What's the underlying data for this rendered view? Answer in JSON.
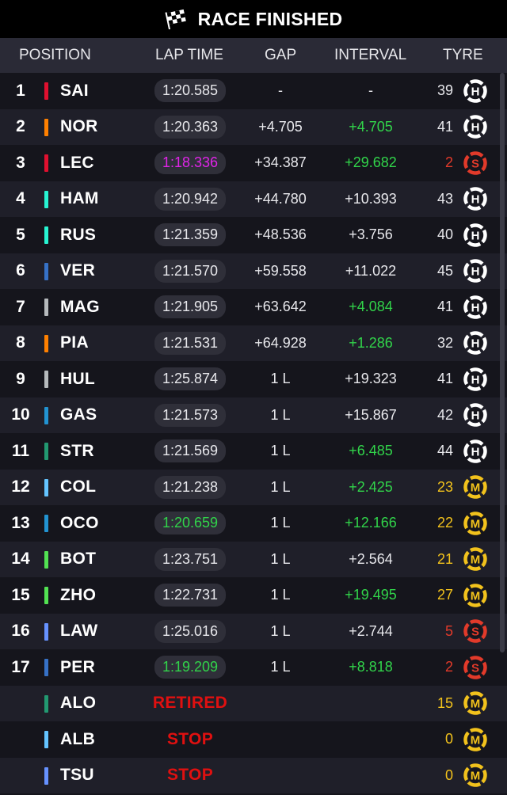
{
  "title": "RACE FINISHED",
  "colors": {
    "purple": "#e024e8",
    "green": "#31d44a",
    "yellow": "#f2c21c",
    "red": "#e23a2a"
  },
  "columns": {
    "position": "POSITION",
    "lap_time": "LAP TIME",
    "gap": "GAP",
    "interval": "INTERVAL",
    "tyre": "TYRE"
  },
  "rows": [
    {
      "pos": "1",
      "team_color": "#e0102f",
      "driver": "SAI",
      "lap": "1:20.585",
      "lap_style": "",
      "gap": "-",
      "interval": "-",
      "interval_green": false,
      "laps": "39",
      "laps_color": "",
      "tyre": "H",
      "tyre_color": "#ffffff"
    },
    {
      "pos": "2",
      "team_color": "#ff8000",
      "driver": "NOR",
      "lap": "1:20.363",
      "lap_style": "",
      "gap": "+4.705",
      "interval": "+4.705",
      "interval_green": true,
      "laps": "41",
      "laps_color": "",
      "tyre": "H",
      "tyre_color": "#ffffff"
    },
    {
      "pos": "3",
      "team_color": "#e0102f",
      "driver": "LEC",
      "lap": "1:18.336",
      "lap_style": "purple",
      "gap": "+34.387",
      "interval": "+29.682",
      "interval_green": true,
      "laps": "2",
      "laps_color": "red",
      "tyre": "S",
      "tyre_color": "#e23a2a"
    },
    {
      "pos": "4",
      "team_color": "#27f4d2",
      "driver": "HAM",
      "lap": "1:20.942",
      "lap_style": "",
      "gap": "+44.780",
      "interval": "+10.393",
      "interval_green": false,
      "laps": "43",
      "laps_color": "",
      "tyre": "H",
      "tyre_color": "#ffffff"
    },
    {
      "pos": "5",
      "team_color": "#27f4d2",
      "driver": "RUS",
      "lap": "1:21.359",
      "lap_style": "",
      "gap": "+48.536",
      "interval": "+3.756",
      "interval_green": false,
      "laps": "40",
      "laps_color": "",
      "tyre": "H",
      "tyre_color": "#ffffff"
    },
    {
      "pos": "6",
      "team_color": "#3671c6",
      "driver": "VER",
      "lap": "1:21.570",
      "lap_style": "",
      "gap": "+59.558",
      "interval": "+11.022",
      "interval_green": false,
      "laps": "45",
      "laps_color": "",
      "tyre": "H",
      "tyre_color": "#ffffff"
    },
    {
      "pos": "7",
      "team_color": "#b6babd",
      "driver": "MAG",
      "lap": "1:21.905",
      "lap_style": "",
      "gap": "+63.642",
      "interval": "+4.084",
      "interval_green": true,
      "laps": "41",
      "laps_color": "",
      "tyre": "H",
      "tyre_color": "#ffffff"
    },
    {
      "pos": "8",
      "team_color": "#ff8000",
      "driver": "PIA",
      "lap": "1:21.531",
      "lap_style": "",
      "gap": "+64.928",
      "interval": "+1.286",
      "interval_green": true,
      "laps": "32",
      "laps_color": "",
      "tyre": "H",
      "tyre_color": "#ffffff"
    },
    {
      "pos": "9",
      "team_color": "#b6babd",
      "driver": "HUL",
      "lap": "1:25.874",
      "lap_style": "",
      "gap": "1 L",
      "interval": "+19.323",
      "interval_green": false,
      "laps": "41",
      "laps_color": "",
      "tyre": "H",
      "tyre_color": "#ffffff"
    },
    {
      "pos": "10",
      "team_color": "#2293d1",
      "driver": "GAS",
      "lap": "1:21.573",
      "lap_style": "",
      "gap": "1 L",
      "interval": "+15.867",
      "interval_green": false,
      "laps": "42",
      "laps_color": "",
      "tyre": "H",
      "tyre_color": "#ffffff"
    },
    {
      "pos": "11",
      "team_color": "#229971",
      "driver": "STR",
      "lap": "1:21.569",
      "lap_style": "",
      "gap": "1 L",
      "interval": "+6.485",
      "interval_green": true,
      "laps": "44",
      "laps_color": "",
      "tyre": "H",
      "tyre_color": "#ffffff"
    },
    {
      "pos": "12",
      "team_color": "#64c4ff",
      "driver": "COL",
      "lap": "1:21.238",
      "lap_style": "",
      "gap": "1 L",
      "interval": "+2.425",
      "interval_green": true,
      "laps": "23",
      "laps_color": "yellow",
      "tyre": "M",
      "tyre_color": "#f2c21c"
    },
    {
      "pos": "13",
      "team_color": "#2293d1",
      "driver": "OCO",
      "lap": "1:20.659",
      "lap_style": "green",
      "gap": "1 L",
      "interval": "+12.166",
      "interval_green": true,
      "laps": "22",
      "laps_color": "yellow",
      "tyre": "M",
      "tyre_color": "#f2c21c"
    },
    {
      "pos": "14",
      "team_color": "#52e252",
      "driver": "BOT",
      "lap": "1:23.751",
      "lap_style": "",
      "gap": "1 L",
      "interval": "+2.564",
      "interval_green": false,
      "laps": "21",
      "laps_color": "yellow",
      "tyre": "M",
      "tyre_color": "#f2c21c"
    },
    {
      "pos": "15",
      "team_color": "#52e252",
      "driver": "ZHO",
      "lap": "1:22.731",
      "lap_style": "",
      "gap": "1 L",
      "interval": "+19.495",
      "interval_green": true,
      "laps": "27",
      "laps_color": "yellow",
      "tyre": "M",
      "tyre_color": "#f2c21c"
    },
    {
      "pos": "16",
      "team_color": "#6692ff",
      "driver": "LAW",
      "lap": "1:25.016",
      "lap_style": "",
      "gap": "1 L",
      "interval": "+2.744",
      "interval_green": false,
      "laps": "5",
      "laps_color": "red",
      "tyre": "S",
      "tyre_color": "#e23a2a"
    },
    {
      "pos": "17",
      "team_color": "#3671c6",
      "driver": "PER",
      "lap": "1:19.209",
      "lap_style": "green",
      "gap": "1 L",
      "interval": "+8.818",
      "interval_green": true,
      "laps": "2",
      "laps_color": "red",
      "tyre": "S",
      "tyre_color": "#e23a2a"
    },
    {
      "pos": "",
      "team_color": "#229971",
      "driver": "ALO",
      "status": "RETIRED",
      "laps": "15",
      "laps_color": "yellow",
      "tyre": "M",
      "tyre_color": "#f2c21c"
    },
    {
      "pos": "",
      "team_color": "#64c4ff",
      "driver": "ALB",
      "status": "STOP",
      "laps": "0",
      "laps_color": "yellow",
      "tyre": "M",
      "tyre_color": "#f2c21c"
    },
    {
      "pos": "",
      "team_color": "#6692ff",
      "driver": "TSU",
      "status": "STOP",
      "laps": "0",
      "laps_color": "yellow",
      "tyre": "M",
      "tyre_color": "#f2c21c"
    }
  ]
}
